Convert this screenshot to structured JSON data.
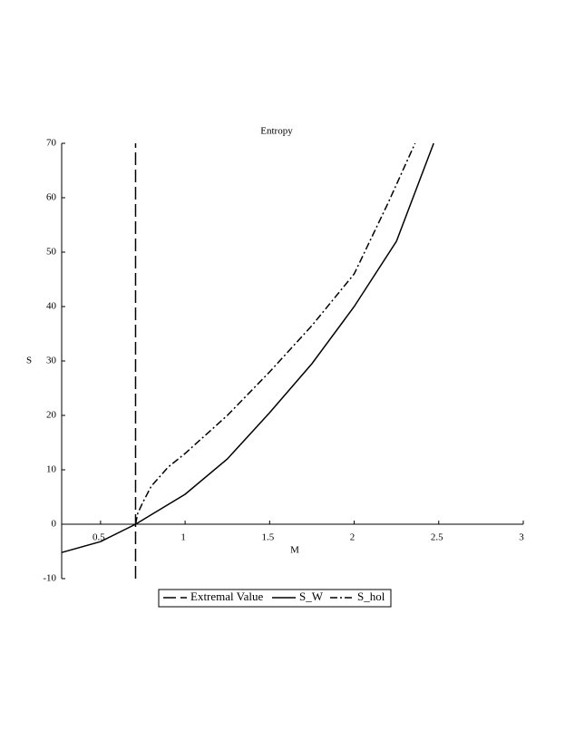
{
  "chart_data": {
    "type": "line",
    "title": "Entropy",
    "x_label": "M",
    "y_label": "S",
    "xlim": [
      0.27,
      3
    ],
    "ylim": [
      -10,
      70
    ],
    "xticks": [
      0.5,
      1,
      1.5,
      2,
      2.5,
      3
    ],
    "yticks": [
      -10,
      0,
      10,
      20,
      30,
      40,
      50,
      60,
      70
    ],
    "series": [
      {
        "name": "Extremal Value",
        "color": "#000000",
        "dash": "long-dash",
        "x": [
          0.707,
          0.707
        ],
        "values": [
          -10,
          70
        ]
      },
      {
        "name": "S_W",
        "color": "#000000",
        "dash": "solid",
        "x": [
          0.27,
          0.5,
          0.707,
          1,
          1.25,
          1.5,
          1.75,
          2,
          2.25,
          2.47
        ],
        "values": [
          -5.2,
          -3.2,
          0,
          5.5,
          12,
          20.5,
          29.5,
          40,
          52,
          70
        ]
      },
      {
        "name": "S_hol",
        "color": "#000000",
        "dash": "dash-dot",
        "x": [
          0.707,
          0.72,
          0.75,
          0.8,
          0.9,
          1,
          1.25,
          1.5,
          1.75,
          2,
          2.2,
          2.36
        ],
        "values": [
          0,
          2,
          4,
          7,
          10.5,
          13,
          20,
          28,
          36.5,
          46,
          59,
          70
        ]
      }
    ]
  }
}
